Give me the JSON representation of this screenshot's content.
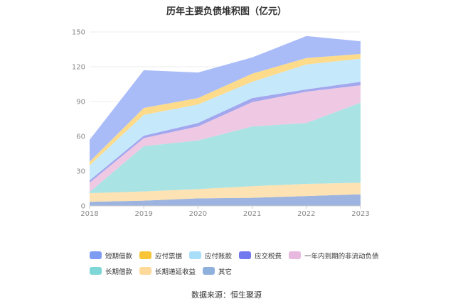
{
  "chart_data": {
    "type": "area",
    "stacked": true,
    "title": "历年主要负债堆积图（亿元）",
    "categories": [
      "2018",
      "2019",
      "2020",
      "2021",
      "2022",
      "2023"
    ],
    "ylim": [
      0,
      150
    ],
    "yticks": [
      0,
      30,
      60,
      90,
      120,
      150
    ],
    "series": [
      {
        "name": "其它",
        "color": "#9db4e0",
        "values": [
          3.5,
          4.5,
          6.5,
          7.0,
          8.5,
          10.0
        ]
      },
      {
        "name": "长期递延收益",
        "color": "#fde2b3",
        "values": [
          7.5,
          8.0,
          8.0,
          10.0,
          10.5,
          10.0
        ]
      },
      {
        "name": "长期借款",
        "color": "#aae3e3",
        "values": [
          1.0,
          39.0,
          42.0,
          51.5,
          52.5,
          69.0
        ]
      },
      {
        "name": "一年内到期的非流动负债",
        "color": "#efc9e3",
        "values": [
          8.0,
          7.0,
          12.0,
          21.0,
          27.0,
          15.0
        ]
      },
      {
        "name": "应交税费",
        "color": "#a2a7ee",
        "values": [
          2.0,
          2.0,
          3.0,
          3.5,
          2.0,
          3.0
        ]
      },
      {
        "name": "应付账款",
        "color": "#c6e8fb",
        "values": [
          13.0,
          18.0,
          16.0,
          14.0,
          21.5,
          20.0
        ]
      },
      {
        "name": "应付票据",
        "color": "#fddb8a",
        "values": [
          3.0,
          6.0,
          5.5,
          7.0,
          5.5,
          4.0
        ]
      },
      {
        "name": "短期借款",
        "color": "#a9bcf8",
        "values": [
          19.0,
          32.5,
          22.0,
          14.0,
          19.0,
          11.0
        ]
      }
    ]
  },
  "legend": [
    {
      "label": "短期借款",
      "color": "#7f9cf3"
    },
    {
      "label": "应付票据",
      "color": "#f8c538"
    },
    {
      "label": "应付账款",
      "color": "#a9def9"
    },
    {
      "label": "应交税费",
      "color": "#7278ee"
    },
    {
      "label": "一年内到期的非流动负债",
      "color": "#e8b9de"
    },
    {
      "label": "长期借款",
      "color": "#7fd6d6"
    },
    {
      "label": "长期递延收益",
      "color": "#fdd99a"
    },
    {
      "label": "其它",
      "color": "#8fb0dc"
    }
  ],
  "source": "数据来源：恒生聚源"
}
